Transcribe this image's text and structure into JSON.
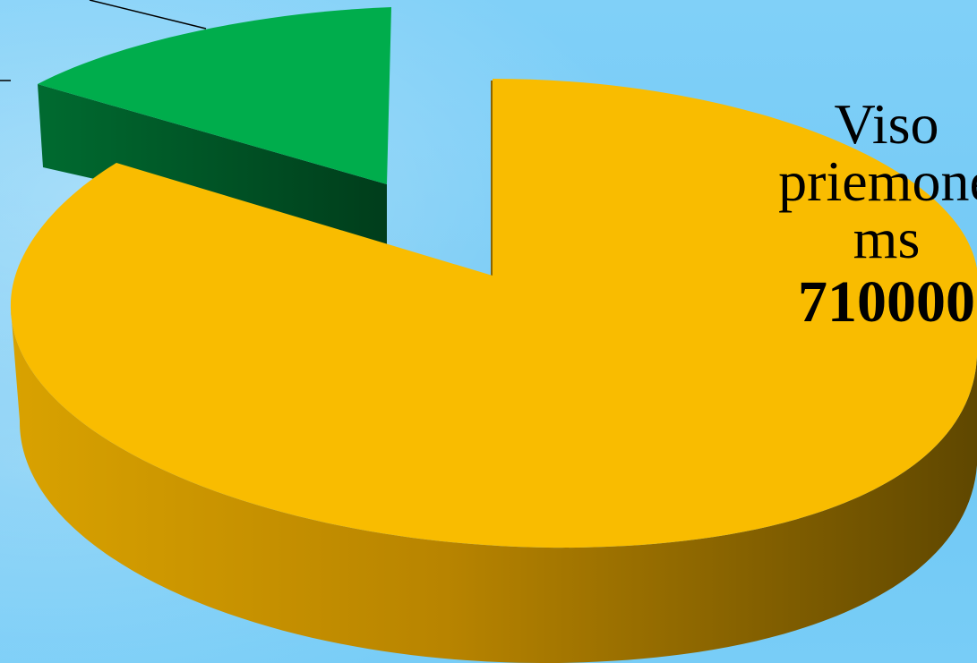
{
  "chart_data": {
    "type": "pie",
    "style": "3d-exploded",
    "slices": [
      {
        "label": "Viso priemonėms",
        "value": 710000,
        "color": "#f9bc00",
        "side_color": "#b88700"
      },
      {
        "label": "",
        "value": null,
        "color": "#00ad4c",
        "side_color": "#004d22"
      }
    ],
    "data_label": {
      "name_text": "Viso\npriemonė\nms",
      "value_text": "710000"
    },
    "background_color": "#7ccdf6"
  }
}
